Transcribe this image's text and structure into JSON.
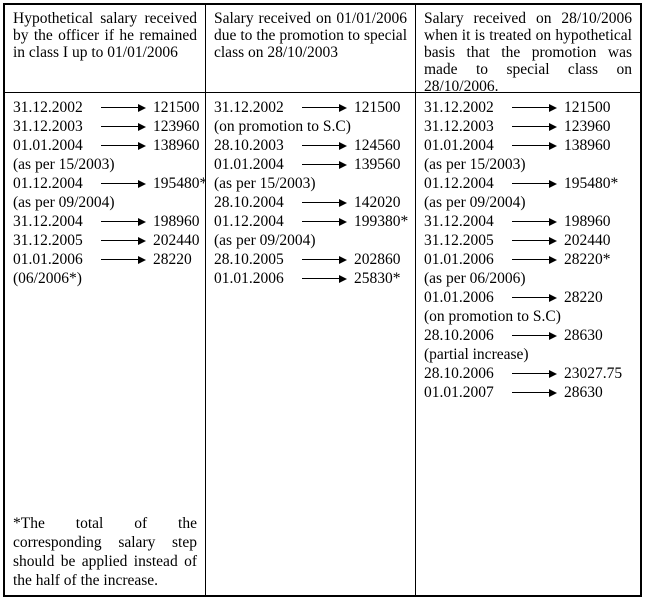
{
  "table": {
    "columns": [
      {
        "id": "hypothetical-class-1",
        "header": "Hypothetical salary received by the officer if he remained in class I up to 01/01/2006",
        "rows": [
          {
            "date": "31.12.2002",
            "value": "121500"
          },
          {
            "date": "31.12.2003",
            "value": "123960"
          },
          {
            "date": "01.01.2004",
            "value": "138960"
          },
          {
            "note": "(as per 15/2003)"
          },
          {
            "date": "01.12.2004",
            "value": "195480*"
          },
          {
            "note": "(as per 09/2004)"
          },
          {
            "date": "31.12.2004",
            "value": "198960"
          },
          {
            "date": "31.12.2005",
            "value": "202440"
          },
          {
            "date": "01.01.2006",
            "value": "28220"
          },
          {
            "note": "(06/2006*)"
          }
        ],
        "footnote": "*The total of the corresponding salary step should be applied instead of the half of the increase."
      },
      {
        "id": "promotion-2003",
        "header": "Salary received on 01/01/2006 due to the promotion to special class on 28/10/2003",
        "rows": [
          {
            "date": "31.12.2002",
            "value": "121500"
          },
          {
            "note": "(on promotion to S.C)"
          },
          {
            "date": "28.10.2003",
            "value": "124560"
          },
          {
            "date": "01.01.2004",
            "value": "139560"
          },
          {
            "note": "(as per 15/2003)"
          },
          {
            "date": "28.10.2004",
            "value": "142020"
          },
          {
            "date": "01.12.2004",
            "value": "199380*"
          },
          {
            "note": "(as per 09/2004)"
          },
          {
            "date": "28.10.2005",
            "value": "202860"
          },
          {
            "date": "01.01.2006",
            "value": "25830*"
          }
        ],
        "footnote": ""
      },
      {
        "id": "promotion-2006",
        "header": "Salary received on 28/10/2006 when it is treated on hypothetical basis that  the promotion was made to special class on 28/10/2006.",
        "rows": [
          {
            "date": "31.12.2002",
            "value": "121500"
          },
          {
            "date": "31.12.2003",
            "value": "123960"
          },
          {
            "date": "01.01.2004",
            "value": "138960"
          },
          {
            "note": "(as per 15/2003)"
          },
          {
            "date": "01.12.2004",
            "value": "195480*"
          },
          {
            "note": "(as per 09/2004)"
          },
          {
            "date": "31.12.2004",
            "value": "198960"
          },
          {
            "date": "31.12.2005",
            "value": "202440"
          },
          {
            "date": "01.01.2006",
            "value": "28220*"
          },
          {
            "note": "(as per 06/2006)"
          },
          {
            "date": "01.01.2006",
            "value": "28220"
          },
          {
            "note": "(on promotion to S.C)"
          },
          {
            "date": "28.10.2006",
            "value": "28630"
          },
          {
            "note": "(partial increase)"
          },
          {
            "date": "28.10.2006",
            "value": "23027.75"
          },
          {
            "date": "01.01.2007",
            "value": "28630"
          }
        ],
        "footnote": ""
      }
    ]
  },
  "icons": {
    "arrow": "long-right-arrow"
  },
  "colors": {
    "border": "#000000",
    "text": "#000000",
    "background": "#ffffff"
  }
}
